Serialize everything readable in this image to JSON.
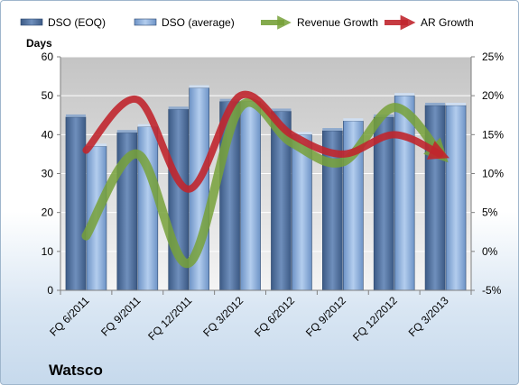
{
  "chart_data": {
    "type": "bar",
    "title": "Watsco",
    "ylabel": "Days",
    "categories": [
      "FQ 6/2011",
      "FQ 9/2011",
      "FQ 12/2011",
      "FQ 3/2012",
      "FQ 6/2012",
      "FQ 9/2012",
      "FQ 12/2012",
      "FQ 3/2013"
    ],
    "ylim": [
      0,
      60
    ],
    "y_ticks": [
      "0",
      "10",
      "20",
      "30",
      "40",
      "50",
      "60"
    ],
    "y2lim": [
      -5,
      25
    ],
    "y2_ticks": [
      "-5%",
      "0%",
      "5%",
      "10%",
      "15%",
      "20%",
      "25%"
    ],
    "grid": true,
    "legend_position": "top",
    "series": [
      {
        "name": "DSO (EOQ)",
        "type": "bar",
        "axis": "left",
        "color": "#4f6f99",
        "values": [
          44.5,
          40.5,
          46.5,
          48.5,
          46,
          41,
          44.5,
          47.5
        ]
      },
      {
        "name": "DSO (average)",
        "type": "bar",
        "axis": "left",
        "color": "#8fb1dc",
        "values": [
          37,
          42,
          52,
          48.5,
          40,
          43.5,
          50,
          47.5
        ]
      },
      {
        "name": "Revenue Growth",
        "type": "line",
        "axis": "right",
        "color": "#77a13a",
        "values": [
          2,
          12.5,
          -1.5,
          18.5,
          14,
          11.5,
          18.5,
          12.5
        ]
      },
      {
        "name": "AR Growth",
        "type": "line",
        "axis": "right",
        "color": "#c0262d",
        "values": [
          13,
          19.5,
          8,
          20,
          15,
          12.5,
          15,
          12.5
        ]
      }
    ]
  }
}
